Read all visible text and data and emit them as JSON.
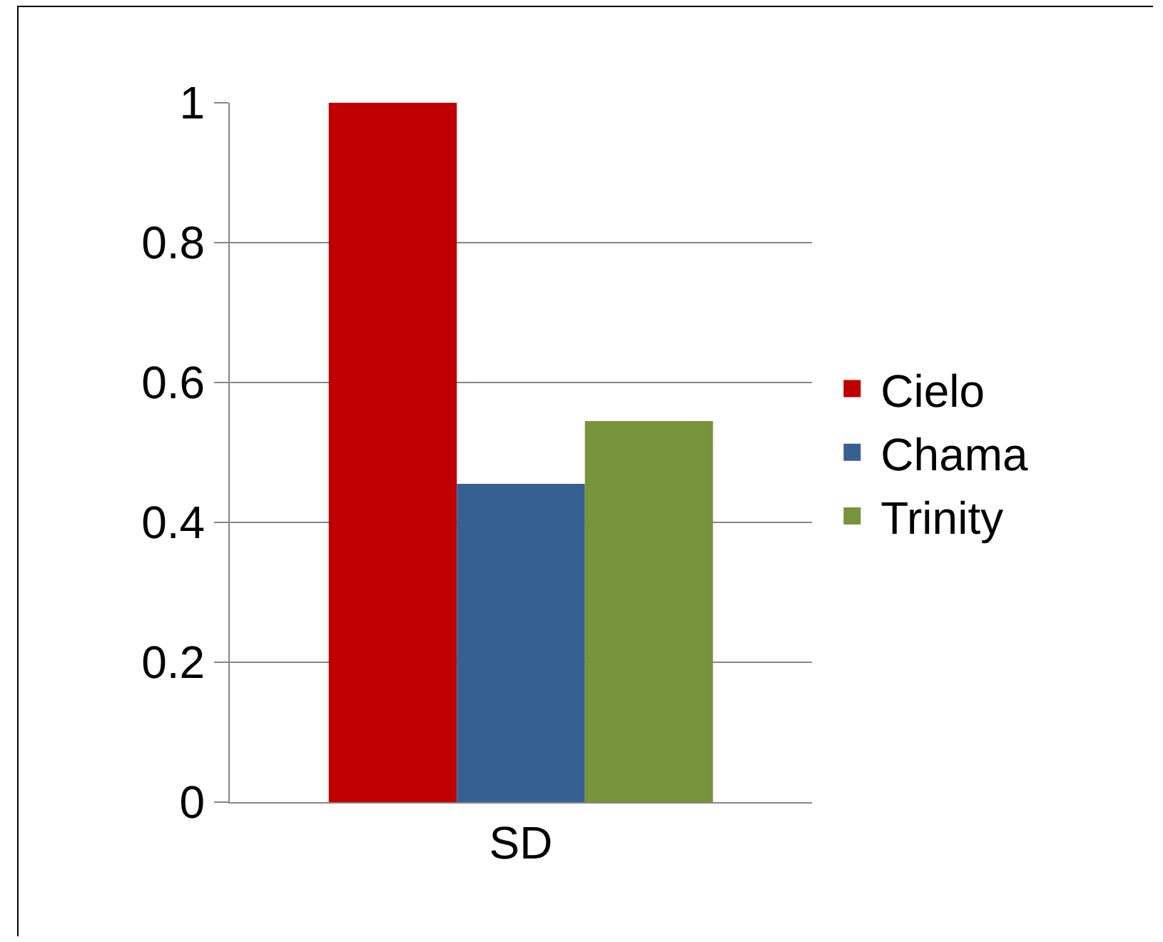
{
  "chart_data": {
    "type": "bar",
    "categories": [
      "SD"
    ],
    "series": [
      {
        "name": "Cielo",
        "color": "#c00000",
        "values": [
          1
        ]
      },
      {
        "name": "Chama",
        "color": "#376092",
        "values": [
          0.455
        ]
      },
      {
        "name": "Trinity",
        "color": "#77933c",
        "values": [
          0.545
        ]
      }
    ],
    "ylim": [
      0,
      1
    ],
    "yticks": [
      0,
      0.2,
      0.4,
      0.6,
      0.8,
      1
    ],
    "grid": "y",
    "legend": "right"
  }
}
